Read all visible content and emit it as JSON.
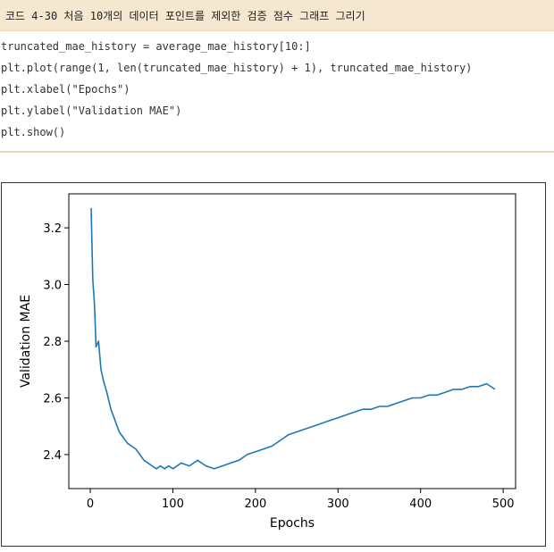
{
  "caption": "코드 4-30 처음 10개의 데이터 포인트를 제외한 검증 점수 그래프 그리기",
  "code_lines": [
    "truncated_mae_history = average_mae_history[10:]",
    "plt.plot(range(1, len(truncated_mae_history) + 1), truncated_mae_history)",
    "plt.xlabel(\"Epochs\")",
    "plt.ylabel(\"Validation MAE\")",
    "plt.show()"
  ],
  "chart_data": {
    "type": "line",
    "title": "",
    "xlabel": "Epochs",
    "ylabel": "Validation MAE",
    "xlim": [
      -26,
      515
    ],
    "ylim": [
      2.28,
      3.32
    ],
    "xticks": [
      0,
      100,
      200,
      300,
      400,
      500
    ],
    "yticks": [
      2.4,
      2.6,
      2.8,
      3.0,
      3.2
    ],
    "xtick_labels": [
      "0",
      "100",
      "200",
      "300",
      "400",
      "500"
    ],
    "ytick_labels": [
      "2.4",
      "2.6",
      "2.8",
      "3.0",
      "3.2"
    ],
    "grid": false,
    "series": [
      {
        "color": "#1f77b4",
        "x": [
          1,
          3,
          5,
          7,
          10,
          13,
          16,
          20,
          25,
          30,
          35,
          40,
          45,
          50,
          55,
          60,
          65,
          70,
          75,
          80,
          85,
          90,
          95,
          100,
          110,
          120,
          130,
          140,
          150,
          160,
          170,
          180,
          190,
          200,
          210,
          220,
          230,
          240,
          250,
          260,
          270,
          280,
          290,
          300,
          310,
          320,
          330,
          340,
          350,
          360,
          370,
          380,
          390,
          400,
          410,
          420,
          430,
          440,
          450,
          460,
          470,
          480,
          490
        ],
        "y": [
          3.27,
          3.02,
          2.93,
          2.78,
          2.8,
          2.7,
          2.66,
          2.62,
          2.56,
          2.52,
          2.48,
          2.46,
          2.44,
          2.43,
          2.42,
          2.4,
          2.38,
          2.37,
          2.36,
          2.35,
          2.36,
          2.35,
          2.36,
          2.35,
          2.37,
          2.36,
          2.38,
          2.36,
          2.35,
          2.36,
          2.37,
          2.38,
          2.4,
          2.41,
          2.42,
          2.43,
          2.45,
          2.47,
          2.48,
          2.49,
          2.5,
          2.51,
          2.52,
          2.53,
          2.54,
          2.55,
          2.56,
          2.56,
          2.57,
          2.57,
          2.58,
          2.59,
          2.6,
          2.6,
          2.61,
          2.61,
          2.62,
          2.63,
          2.63,
          2.64,
          2.64,
          2.65,
          2.63
        ]
      }
    ]
  }
}
